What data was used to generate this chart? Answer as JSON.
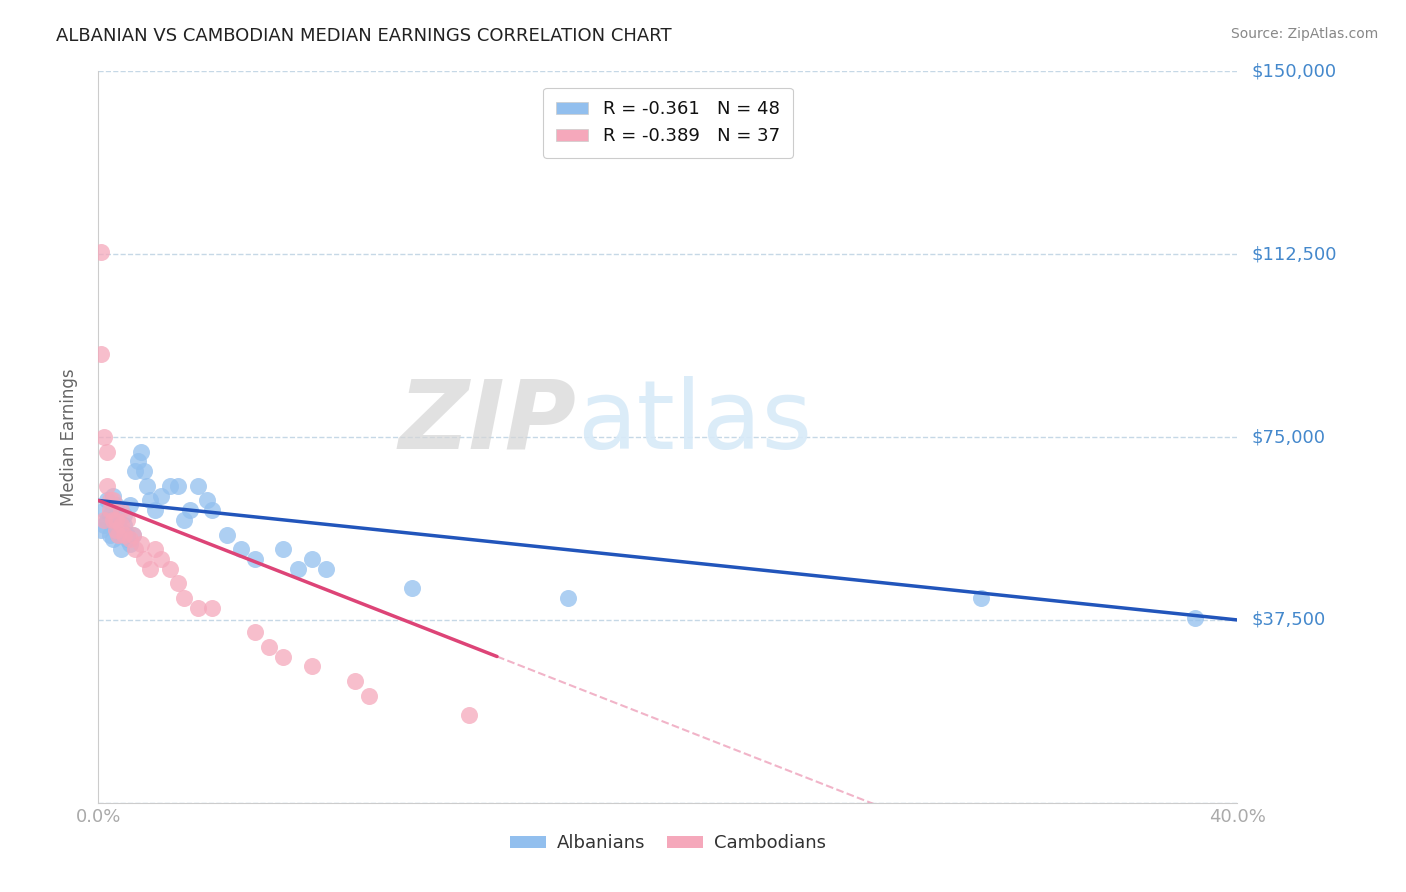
{
  "title": "ALBANIAN VS CAMBODIAN MEDIAN EARNINGS CORRELATION CHART",
  "source": "Source: ZipAtlas.com",
  "ylabel": "Median Earnings",
  "xlim": [
    0.0,
    0.4
  ],
  "ylim": [
    0,
    150000
  ],
  "yticks": [
    0,
    37500,
    75000,
    112500,
    150000
  ],
  "ytick_labels": [
    "",
    "$37,500",
    "$75,000",
    "$112,500",
    "$150,000"
  ],
  "xticks": [
    0.0,
    0.05,
    0.1,
    0.15,
    0.2,
    0.25,
    0.3,
    0.35,
    0.4
  ],
  "xtick_labels": [
    "0.0%",
    "",
    "",
    "",
    "",
    "",
    "",
    "",
    "40.0%"
  ],
  "albanian_color": "#92bfee",
  "cambodian_color": "#f5a8bb",
  "albanian_line_color": "#2255bb",
  "cambodian_line_color": "#dd4477",
  "R_albanian": -0.361,
  "N_albanian": 48,
  "R_cambodian": -0.389,
  "N_cambodian": 37,
  "background_color": "#ffffff",
  "grid_color": "#b8cfe0",
  "title_color": "#222222",
  "axis_tick_color": "#4488cc",
  "watermark_color": "#d8eaf8",
  "albanian_x": [
    0.001,
    0.002,
    0.002,
    0.003,
    0.003,
    0.004,
    0.004,
    0.005,
    0.005,
    0.006,
    0.006,
    0.007,
    0.007,
    0.008,
    0.008,
    0.009,
    0.009,
    0.01,
    0.01,
    0.011,
    0.011,
    0.012,
    0.013,
    0.014,
    0.015,
    0.016,
    0.017,
    0.018,
    0.02,
    0.022,
    0.025,
    0.028,
    0.03,
    0.032,
    0.035,
    0.038,
    0.04,
    0.045,
    0.05,
    0.055,
    0.065,
    0.07,
    0.075,
    0.08,
    0.11,
    0.165,
    0.31,
    0.385
  ],
  "albanian_y": [
    56000,
    57000,
    60000,
    58000,
    62000,
    55000,
    59000,
    54000,
    63000,
    57000,
    61000,
    55000,
    58000,
    56000,
    52000,
    57000,
    59000,
    55000,
    54000,
    53000,
    61000,
    55000,
    68000,
    70000,
    72000,
    68000,
    65000,
    62000,
    60000,
    63000,
    65000,
    65000,
    58000,
    60000,
    65000,
    62000,
    60000,
    55000,
    52000,
    50000,
    52000,
    48000,
    50000,
    48000,
    44000,
    42000,
    42000,
    38000
  ],
  "cambodian_x": [
    0.001,
    0.001,
    0.002,
    0.002,
    0.003,
    0.003,
    0.004,
    0.004,
    0.005,
    0.005,
    0.006,
    0.006,
    0.007,
    0.008,
    0.008,
    0.009,
    0.01,
    0.011,
    0.012,
    0.013,
    0.015,
    0.016,
    0.018,
    0.02,
    0.022,
    0.025,
    0.028,
    0.03,
    0.035,
    0.04,
    0.055,
    0.06,
    0.065,
    0.075,
    0.09,
    0.095,
    0.13
  ],
  "cambodian_y": [
    113000,
    92000,
    58000,
    75000,
    65000,
    72000,
    60000,
    62000,
    58000,
    62000,
    56000,
    58000,
    55000,
    60000,
    57000,
    55000,
    58000,
    54000,
    55000,
    52000,
    53000,
    50000,
    48000,
    52000,
    50000,
    48000,
    45000,
    42000,
    40000,
    40000,
    35000,
    32000,
    30000,
    28000,
    25000,
    22000,
    18000
  ],
  "cam_trend_solid_end": 0.14,
  "cam_trend_dash_end": 0.28
}
